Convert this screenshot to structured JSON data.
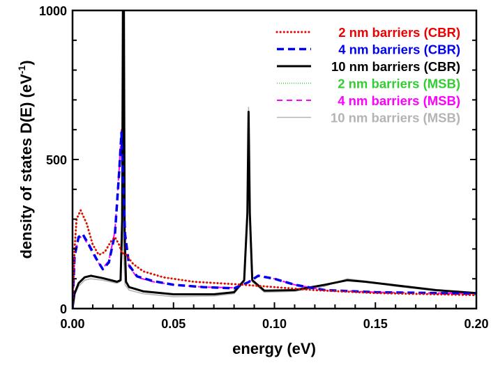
{
  "chart_data": {
    "type": "line",
    "title": "",
    "xlabel": "energy (eV)",
    "ylabel": {
      "main": "density of states D(E) (eV",
      "sup": "-1",
      "close": ")"
    },
    "xlim": [
      0,
      0.2
    ],
    "ylim": [
      0,
      1000
    ],
    "x_ticks": [
      "0.00",
      "0.05",
      "0.10",
      "0.15",
      "0.20"
    ],
    "x_tick_values": [
      0,
      0.05,
      0.1,
      0.15,
      0.2
    ],
    "y_ticks": [
      "0",
      "500",
      "1000"
    ],
    "y_tick_values": [
      0,
      500,
      1000
    ],
    "grid": false,
    "legend_position": "top-right",
    "series": [
      {
        "name": "10 nm barriers (MSB)",
        "color": "#b4b4b4",
        "style": "solid-thin",
        "points": [
          [
            0,
            0
          ],
          [
            0.001,
            45
          ],
          [
            0.003,
            75
          ],
          [
            0.006,
            95
          ],
          [
            0.009,
            100
          ],
          [
            0.015,
            95
          ],
          [
            0.022,
            85
          ],
          [
            0.0235,
            90
          ],
          [
            0.0243,
            200
          ],
          [
            0.0247,
            820
          ],
          [
            0.0251,
            200
          ],
          [
            0.026,
            80
          ],
          [
            0.028,
            62
          ],
          [
            0.035,
            50
          ],
          [
            0.05,
            40
          ],
          [
            0.07,
            42
          ],
          [
            0.08,
            50
          ],
          [
            0.085,
            90
          ],
          [
            0.0866,
            300
          ],
          [
            0.0872,
            675
          ],
          [
            0.0878,
            300
          ],
          [
            0.089,
            90
          ],
          [
            0.095,
            55
          ],
          [
            0.11,
            58
          ],
          [
            0.125,
            75
          ],
          [
            0.136,
            100
          ],
          [
            0.145,
            92
          ],
          [
            0.16,
            75
          ],
          [
            0.18,
            60
          ],
          [
            0.2,
            50
          ]
        ]
      },
      {
        "name": "4 nm barriers (MSB)",
        "color": "#ff00ff",
        "style": "dash-thin",
        "points": [
          [
            0,
            0
          ],
          [
            0.001,
            180
          ],
          [
            0.003,
            235
          ],
          [
            0.005,
            245
          ],
          [
            0.008,
            210
          ],
          [
            0.012,
            160
          ],
          [
            0.015,
            135
          ],
          [
            0.018,
            160
          ],
          [
            0.021,
            260
          ],
          [
            0.0232,
            480
          ],
          [
            0.0242,
            600
          ],
          [
            0.025,
            450
          ],
          [
            0.026,
            250
          ],
          [
            0.028,
            140
          ],
          [
            0.032,
            105
          ],
          [
            0.04,
            90
          ],
          [
            0.05,
            80
          ],
          [
            0.065,
            72
          ],
          [
            0.08,
            70
          ],
          [
            0.087,
            90
          ],
          [
            0.092,
            108
          ],
          [
            0.1,
            100
          ],
          [
            0.11,
            80
          ],
          [
            0.125,
            62
          ],
          [
            0.15,
            55
          ],
          [
            0.2,
            50
          ]
        ]
      },
      {
        "name": "2 nm barriers (MSB)",
        "color": "#33cc33",
        "style": "dot-thin",
        "points": [
          [
            0,
            0
          ],
          [
            0.001,
            200
          ],
          [
            0.002,
            300
          ],
          [
            0.004,
            330
          ],
          [
            0.007,
            285
          ],
          [
            0.01,
            215
          ],
          [
            0.013,
            180
          ],
          [
            0.016,
            190
          ],
          [
            0.019,
            225
          ],
          [
            0.021,
            240
          ],
          [
            0.023,
            215
          ],
          [
            0.0245,
            185
          ],
          [
            0.026,
            185
          ],
          [
            0.03,
            150
          ],
          [
            0.035,
            125
          ],
          [
            0.045,
            105
          ],
          [
            0.06,
            90
          ],
          [
            0.08,
            82
          ],
          [
            0.1,
            72
          ],
          [
            0.12,
            62
          ],
          [
            0.15,
            52
          ],
          [
            0.2,
            45
          ]
        ]
      },
      {
        "name": "10 nm barriers (CBR)",
        "color": "#000000",
        "style": "solid",
        "points": [
          [
            0,
            0
          ],
          [
            0.001,
            50
          ],
          [
            0.003,
            85
          ],
          [
            0.006,
            105
          ],
          [
            0.009,
            110
          ],
          [
            0.015,
            102
          ],
          [
            0.022,
            90
          ],
          [
            0.0238,
            95
          ],
          [
            0.0246,
            300
          ],
          [
            0.025,
            1100
          ],
          [
            0.0254,
            1100
          ],
          [
            0.0258,
            250
          ],
          [
            0.0265,
            90
          ],
          [
            0.028,
            72
          ],
          [
            0.035,
            58
          ],
          [
            0.05,
            48
          ],
          [
            0.07,
            48
          ],
          [
            0.08,
            55
          ],
          [
            0.085,
            95
          ],
          [
            0.0866,
            320
          ],
          [
            0.0872,
            660
          ],
          [
            0.0878,
            320
          ],
          [
            0.089,
            95
          ],
          [
            0.095,
            60
          ],
          [
            0.11,
            62
          ],
          [
            0.125,
            80
          ],
          [
            0.136,
            95
          ],
          [
            0.145,
            90
          ],
          [
            0.16,
            78
          ],
          [
            0.18,
            62
          ],
          [
            0.2,
            52
          ]
        ]
      },
      {
        "name": "4 nm barriers (CBR)",
        "color": "#0000ee",
        "style": "dash",
        "points": [
          [
            0,
            0
          ],
          [
            0.001,
            175
          ],
          [
            0.003,
            240
          ],
          [
            0.005,
            250
          ],
          [
            0.008,
            215
          ],
          [
            0.012,
            165
          ],
          [
            0.015,
            132
          ],
          [
            0.018,
            155
          ],
          [
            0.021,
            250
          ],
          [
            0.0232,
            470
          ],
          [
            0.0242,
            590
          ],
          [
            0.025,
            440
          ],
          [
            0.026,
            250
          ],
          [
            0.028,
            145
          ],
          [
            0.032,
            108
          ],
          [
            0.04,
            92
          ],
          [
            0.05,
            80
          ],
          [
            0.065,
            72
          ],
          [
            0.08,
            68
          ],
          [
            0.087,
            88
          ],
          [
            0.092,
            110
          ],
          [
            0.1,
            100
          ],
          [
            0.11,
            80
          ],
          [
            0.125,
            62
          ],
          [
            0.15,
            55
          ],
          [
            0.2,
            50
          ]
        ]
      },
      {
        "name": "2 nm barriers (CBR)",
        "color": "#ee0000",
        "style": "dot",
        "points": [
          [
            0,
            0
          ],
          [
            0.001,
            200
          ],
          [
            0.002,
            300
          ],
          [
            0.004,
            330
          ],
          [
            0.007,
            285
          ],
          [
            0.01,
            215
          ],
          [
            0.013,
            180
          ],
          [
            0.016,
            190
          ],
          [
            0.019,
            225
          ],
          [
            0.021,
            240
          ],
          [
            0.023,
            215
          ],
          [
            0.0245,
            185
          ],
          [
            0.026,
            185
          ],
          [
            0.03,
            150
          ],
          [
            0.035,
            125
          ],
          [
            0.045,
            105
          ],
          [
            0.06,
            90
          ],
          [
            0.08,
            82
          ],
          [
            0.1,
            72
          ],
          [
            0.12,
            62
          ],
          [
            0.15,
            52
          ],
          [
            0.2,
            45
          ]
        ]
      }
    ],
    "legend_order": [
      5,
      4,
      3,
      2,
      1,
      0
    ]
  }
}
